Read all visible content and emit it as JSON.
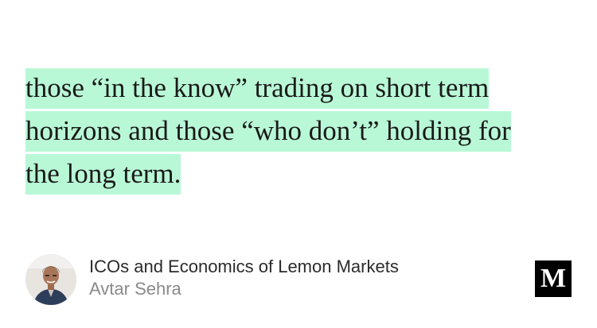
{
  "quote": {
    "lines": [
      "those “in the know” trading on short term",
      "horizons and those “who don’t” holding for",
      "the long term."
    ],
    "highlight_color": "#b9f8d6"
  },
  "article": {
    "title": "ICOs and Economics of Lemon Markets",
    "author": "Avtar Sehra"
  },
  "logo": {
    "letter": "M",
    "background": "#000000"
  }
}
